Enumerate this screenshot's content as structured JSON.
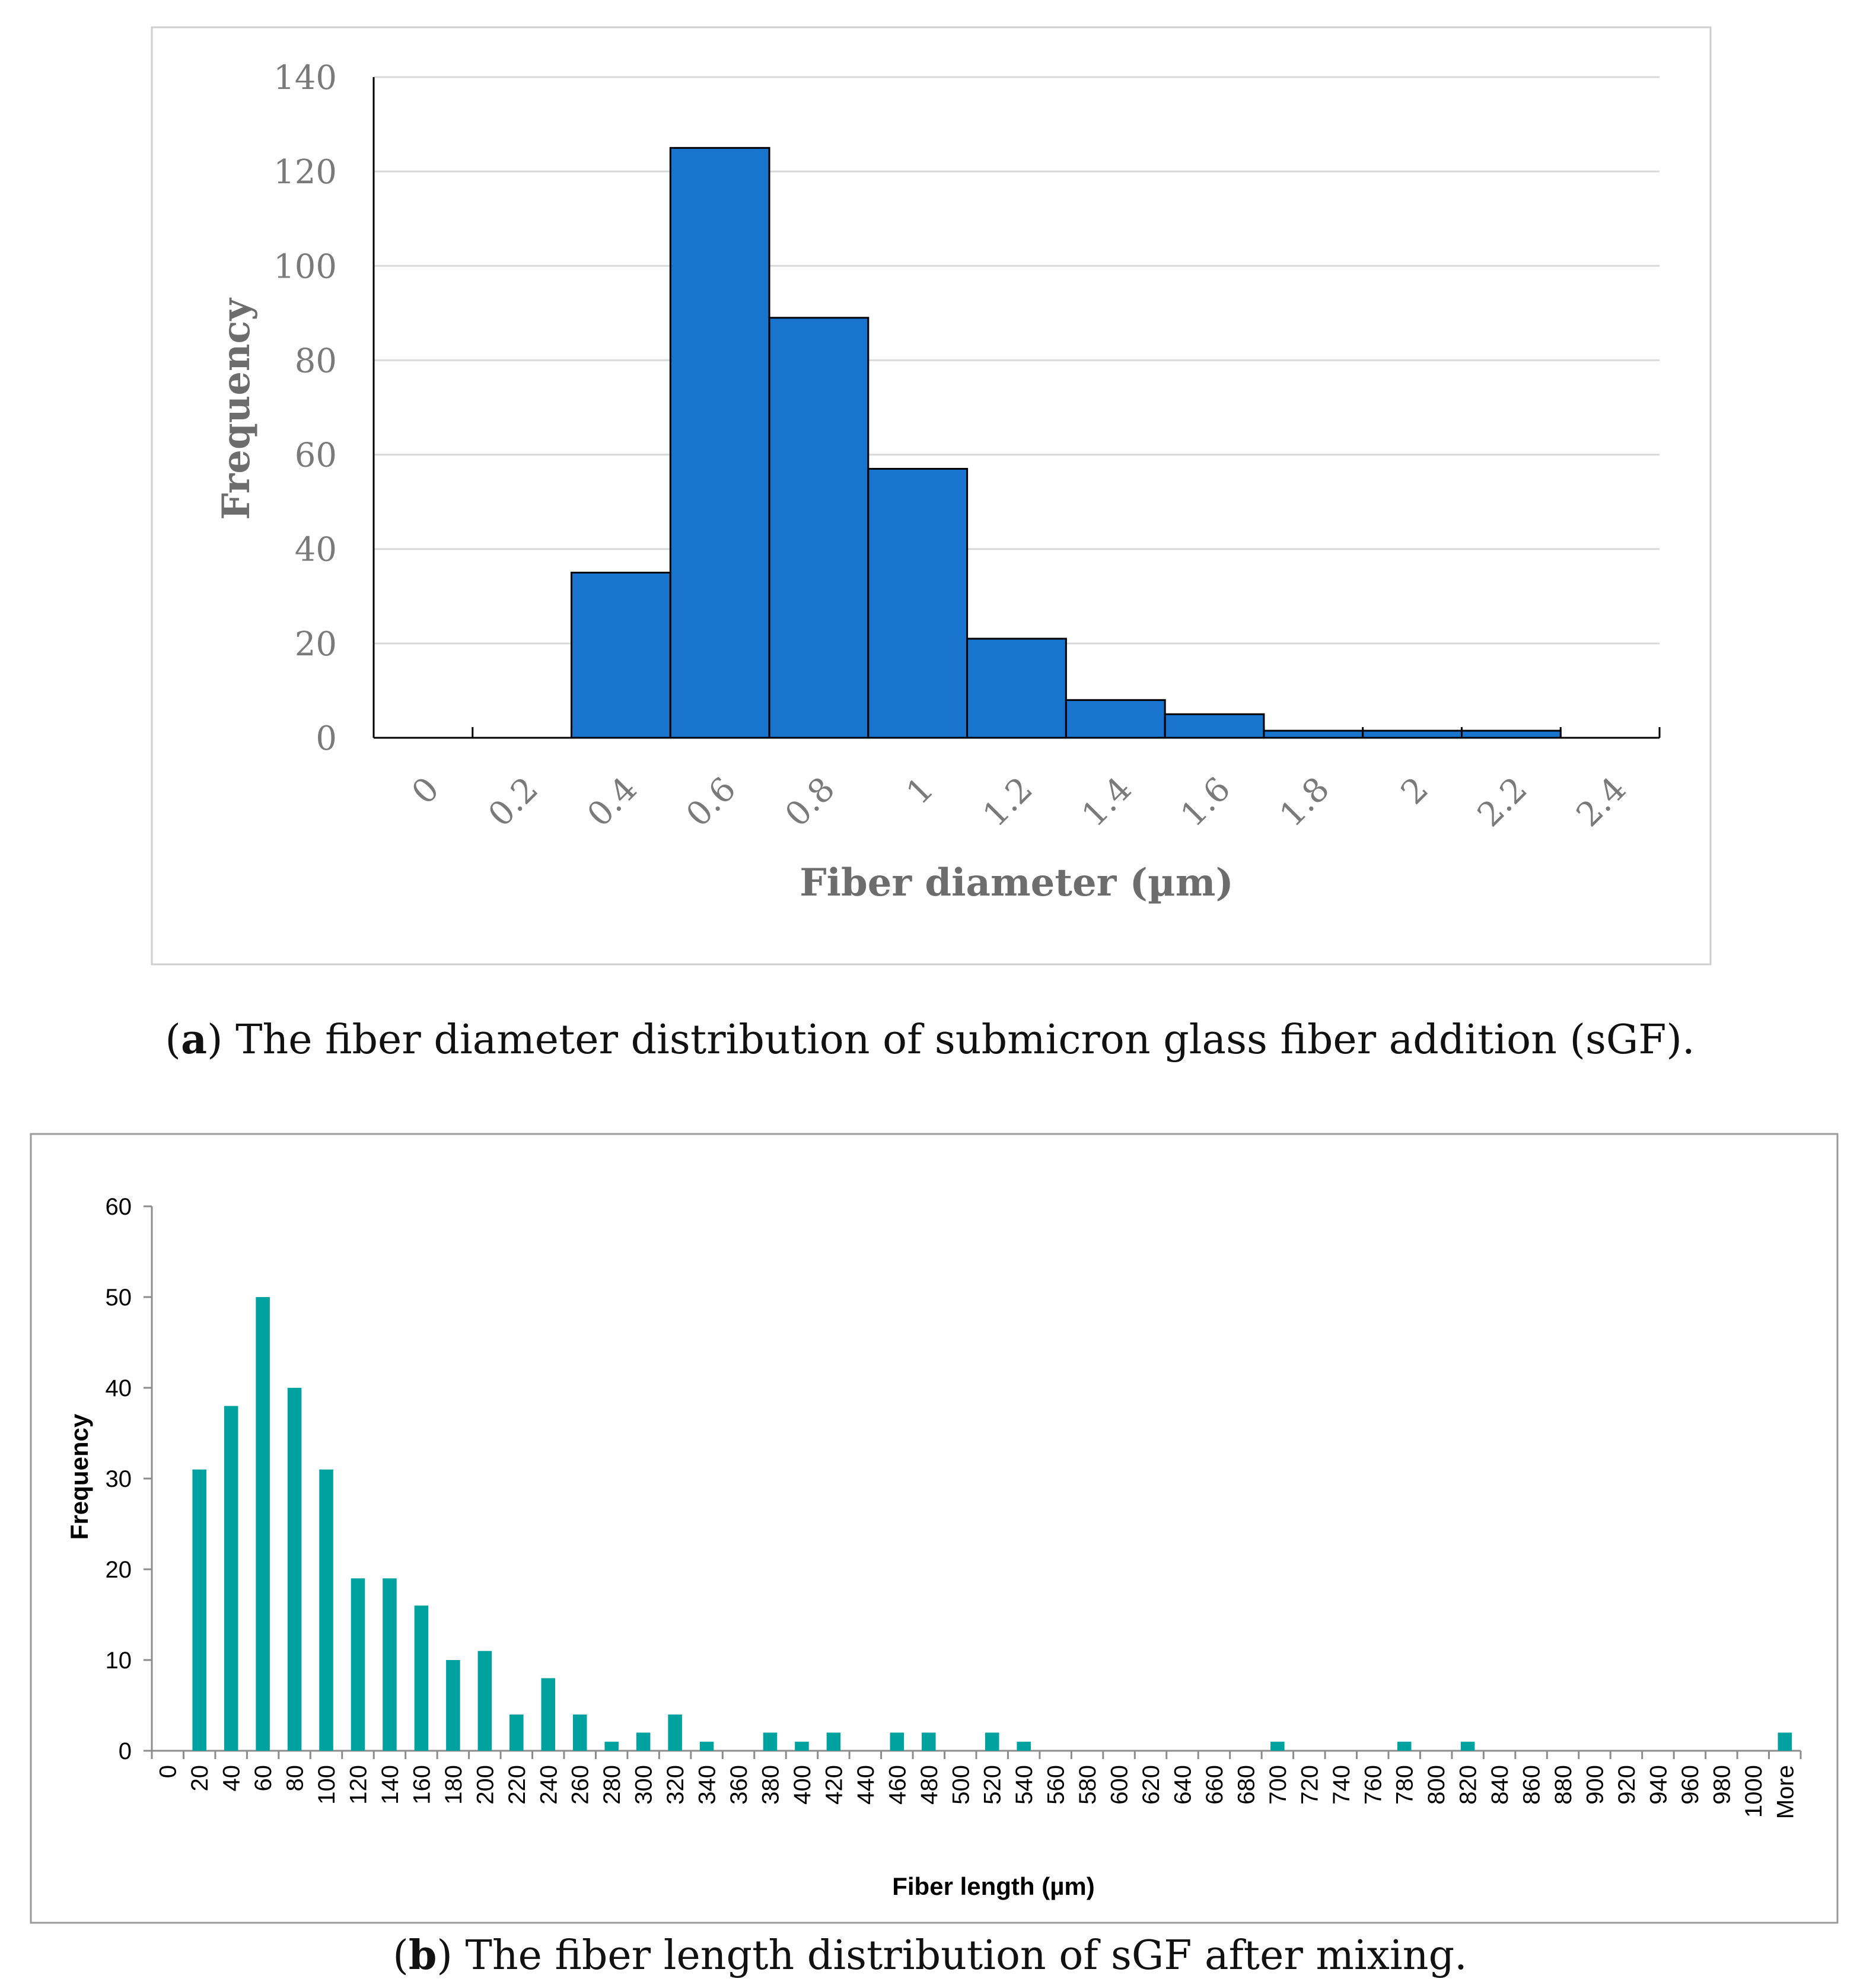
{
  "colors": {
    "bar_a": "#1874CD",
    "bar_b": "#00A2A0",
    "grid": "#d9d9d9",
    "frame": "#cfcfcf"
  },
  "chart_data": [
    {
      "type": "bar",
      "ylabel": "Frequency",
      "xlabel": "Fiber diameter (µm)",
      "ylim": [
        0,
        140
      ],
      "yticks": [
        "0",
        "20",
        "40",
        "60",
        "80",
        "100",
        "120",
        "140"
      ],
      "xticks": [
        "0",
        "0.2",
        "0.4",
        "0.6",
        "0.8",
        "1",
        "1.2",
        "1.4",
        "1.6",
        "1.8",
        "2",
        "2.2",
        "2.4"
      ],
      "bins": [
        {
          "from": 0,
          "to": 0.2,
          "value": 0
        },
        {
          "from": 0.2,
          "to": 0.4,
          "value": 0
        },
        {
          "from": 0.4,
          "to": 0.6,
          "value": 35
        },
        {
          "from": 0.6,
          "to": 0.8,
          "value": 125
        },
        {
          "from": 0.8,
          "to": 1.0,
          "value": 89
        },
        {
          "from": 1.0,
          "to": 1.2,
          "value": 57
        },
        {
          "from": 1.2,
          "to": 1.4,
          "value": 21
        },
        {
          "from": 1.4,
          "to": 1.6,
          "value": 8
        },
        {
          "from": 1.6,
          "to": 1.8,
          "value": 5
        },
        {
          "from": 1.8,
          "to": 2.0,
          "value": 1.5
        },
        {
          "from": 2.0,
          "to": 2.2,
          "value": 1.5
        },
        {
          "from": 2.2,
          "to": 2.4,
          "value": 1.5
        }
      ],
      "caption_letter": "a",
      "caption_open": "(",
      "caption_text": ") The fiber diameter distribution of submicron glass fiber addition (sGF)."
    },
    {
      "type": "bar",
      "ylabel": "Frequency",
      "xlabel": "Fiber length (µm)",
      "ylim": [
        0,
        60
      ],
      "yticks": [
        "0",
        "10",
        "20",
        "30",
        "40",
        "50",
        "60"
      ],
      "categories": [
        "0",
        "20",
        "40",
        "60",
        "80",
        "100",
        "120",
        "140",
        "160",
        "180",
        "200",
        "220",
        "240",
        "260",
        "280",
        "300",
        "320",
        "340",
        "360",
        "380",
        "400",
        "420",
        "440",
        "460",
        "480",
        "500",
        "520",
        "540",
        "560",
        "580",
        "600",
        "620",
        "640",
        "660",
        "680",
        "700",
        "720",
        "740",
        "760",
        "780",
        "800",
        "820",
        "840",
        "860",
        "880",
        "900",
        "920",
        "940",
        "960",
        "980",
        "1000",
        "More"
      ],
      "values": [
        0,
        31,
        38,
        50,
        40,
        31,
        19,
        19,
        16,
        10,
        11,
        4,
        8,
        4,
        1,
        2,
        4,
        1,
        0,
        2,
        1,
        2,
        0,
        2,
        2,
        0,
        2,
        1,
        0,
        0,
        0,
        0,
        0,
        0,
        0,
        1,
        0,
        0,
        0,
        1,
        0,
        1,
        0,
        0,
        0,
        0,
        0,
        0,
        0,
        0,
        0,
        2
      ],
      "caption_letter": "b",
      "caption_open": "(",
      "caption_text": ") The fiber length distribution of sGF after mixing."
    }
  ]
}
